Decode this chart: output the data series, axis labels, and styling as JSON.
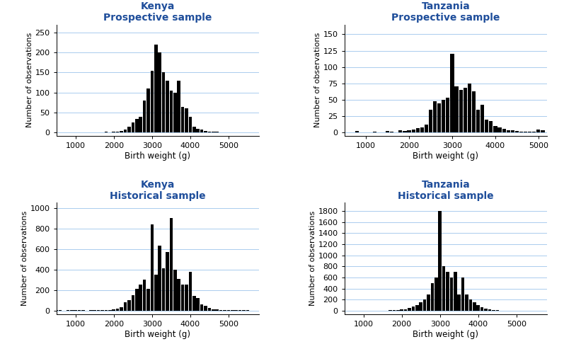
{
  "title_color": "#1F4E9B",
  "bar_color": "black",
  "bg_color": "white",
  "grid_color": "#AACCEE",
  "xlabel": "Birth weight (g)",
  "ylabel": "Number of observations",
  "plots": [
    {
      "title_line1": "Kenya",
      "title_line2": "Prospective sample",
      "xlim": [
        500,
        5800
      ],
      "xticks": [
        1000,
        2000,
        3000,
        4000,
        5000
      ],
      "ylim": [
        -8,
        270
      ],
      "yticks": [
        0,
        50,
        100,
        150,
        200,
        250
      ],
      "bin_centers": [
        500,
        600,
        700,
        800,
        900,
        1000,
        1100,
        1200,
        1300,
        1400,
        1500,
        1600,
        1700,
        1800,
        1900,
        2000,
        2100,
        2200,
        2300,
        2400,
        2500,
        2600,
        2700,
        2800,
        2900,
        3000,
        3100,
        3200,
        3300,
        3400,
        3500,
        3600,
        3700,
        3800,
        3900,
        4000,
        4100,
        4200,
        4300,
        4400,
        4500,
        4600,
        4700,
        4800,
        4900,
        5000,
        5100,
        5200,
        5300,
        5400,
        5500,
        5600,
        5700
      ],
      "counts": [
        1,
        0,
        0,
        1,
        0,
        1,
        0,
        0,
        0,
        0,
        1,
        0,
        0,
        2,
        1,
        3,
        3,
        4,
        8,
        15,
        25,
        35,
        40,
        80,
        110,
        155,
        220,
        200,
        150,
        130,
        105,
        100,
        130,
        65,
        60,
        40,
        15,
        10,
        8,
        5,
        3,
        2,
        2,
        1,
        1,
        1,
        0,
        1,
        0,
        0,
        0,
        1,
        0
      ]
    },
    {
      "title_line1": "Tanzania",
      "title_line2": "Prospective sample",
      "xlim": [
        500,
        5200
      ],
      "xticks": [
        1000,
        2000,
        3000,
        4000,
        5000
      ],
      "ylim": [
        -5,
        165
      ],
      "yticks": [
        0,
        25,
        50,
        75,
        100,
        125,
        150
      ],
      "bin_centers": [
        500,
        600,
        700,
        800,
        900,
        1000,
        1100,
        1200,
        1300,
        1400,
        1500,
        1600,
        1700,
        1800,
        1900,
        2000,
        2100,
        2200,
        2300,
        2400,
        2500,
        2600,
        2700,
        2800,
        2900,
        3000,
        3100,
        3200,
        3300,
        3400,
        3500,
        3600,
        3700,
        3800,
        3900,
        4000,
        4100,
        4200,
        4300,
        4400,
        4500,
        4600,
        4700,
        4800,
        4900,
        5000,
        5100
      ],
      "counts": [
        0,
        0,
        0,
        2,
        0,
        0,
        0,
        1,
        0,
        0,
        2,
        1,
        0,
        3,
        2,
        4,
        5,
        7,
        8,
        12,
        35,
        48,
        45,
        50,
        53,
        120,
        70,
        65,
        68,
        75,
        63,
        35,
        42,
        20,
        18,
        10,
        8,
        6,
        4,
        3,
        2,
        1,
        1,
        1,
        1,
        5,
        3
      ]
    },
    {
      "title_line1": "Kenya",
      "title_line2": "Historical sample",
      "xlim": [
        500,
        5800
      ],
      "xticks": [
        1000,
        2000,
        3000,
        4000,
        5000
      ],
      "ylim": [
        -35,
        1050
      ],
      "yticks": [
        0,
        200,
        400,
        600,
        800,
        1000
      ],
      "bin_centers": [
        500,
        600,
        700,
        800,
        900,
        1000,
        1100,
        1200,
        1300,
        1400,
        1500,
        1600,
        1700,
        1800,
        1900,
        2000,
        2100,
        2200,
        2300,
        2400,
        2500,
        2600,
        2700,
        2800,
        2900,
        3000,
        3100,
        3200,
        3300,
        3400,
        3500,
        3600,
        3700,
        3800,
        3900,
        4000,
        4100,
        4200,
        4300,
        4400,
        4500,
        4600,
        4700,
        4800,
        4900,
        5000,
        5100,
        5200,
        5300,
        5400,
        5500,
        5600,
        5700
      ],
      "counts": [
        2,
        1,
        0,
        2,
        1,
        2,
        1,
        2,
        0,
        2,
        2,
        1,
        3,
        4,
        5,
        12,
        20,
        30,
        80,
        100,
        150,
        210,
        250,
        300,
        210,
        840,
        350,
        630,
        410,
        570,
        900,
        400,
        310,
        250,
        255,
        380,
        140,
        120,
        60,
        45,
        25,
        12,
        8,
        5,
        3,
        2,
        1,
        2,
        1,
        1,
        3,
        0,
        0
      ]
    },
    {
      "title_line1": "Tanzania",
      "title_line2": "Historical sample",
      "xlim": [
        500,
        5800
      ],
      "xticks": [
        1000,
        2000,
        3000,
        4000,
        5000
      ],
      "ylim": [
        -60,
        1950
      ],
      "yticks": [
        0,
        200,
        400,
        600,
        800,
        1000,
        1200,
        1400,
        1600,
        1800
      ],
      "bin_centers": [
        500,
        600,
        700,
        800,
        900,
        1000,
        1100,
        1200,
        1300,
        1400,
        1500,
        1600,
        1700,
        1800,
        1900,
        2000,
        2100,
        2200,
        2300,
        2400,
        2500,
        2600,
        2700,
        2800,
        2900,
        3000,
        3100,
        3200,
        3300,
        3400,
        3500,
        3600,
        3700,
        3800,
        3900,
        4000,
        4100,
        4200,
        4300,
        4400,
        4500,
        4600,
        4700,
        4800,
        4900,
        5000,
        5100,
        5200,
        5300,
        5400,
        5500,
        5600,
        5700
      ],
      "counts": [
        2,
        1,
        0,
        3,
        1,
        2,
        1,
        3,
        2,
        4,
        5,
        5,
        8,
        10,
        12,
        20,
        30,
        50,
        80,
        100,
        150,
        200,
        300,
        500,
        600,
        1800,
        800,
        700,
        600,
        700,
        300,
        600,
        300,
        200,
        150,
        100,
        60,
        40,
        25,
        15,
        10,
        6,
        4,
        3,
        2,
        5,
        1,
        1,
        1,
        0,
        3,
        0,
        1
      ]
    }
  ]
}
